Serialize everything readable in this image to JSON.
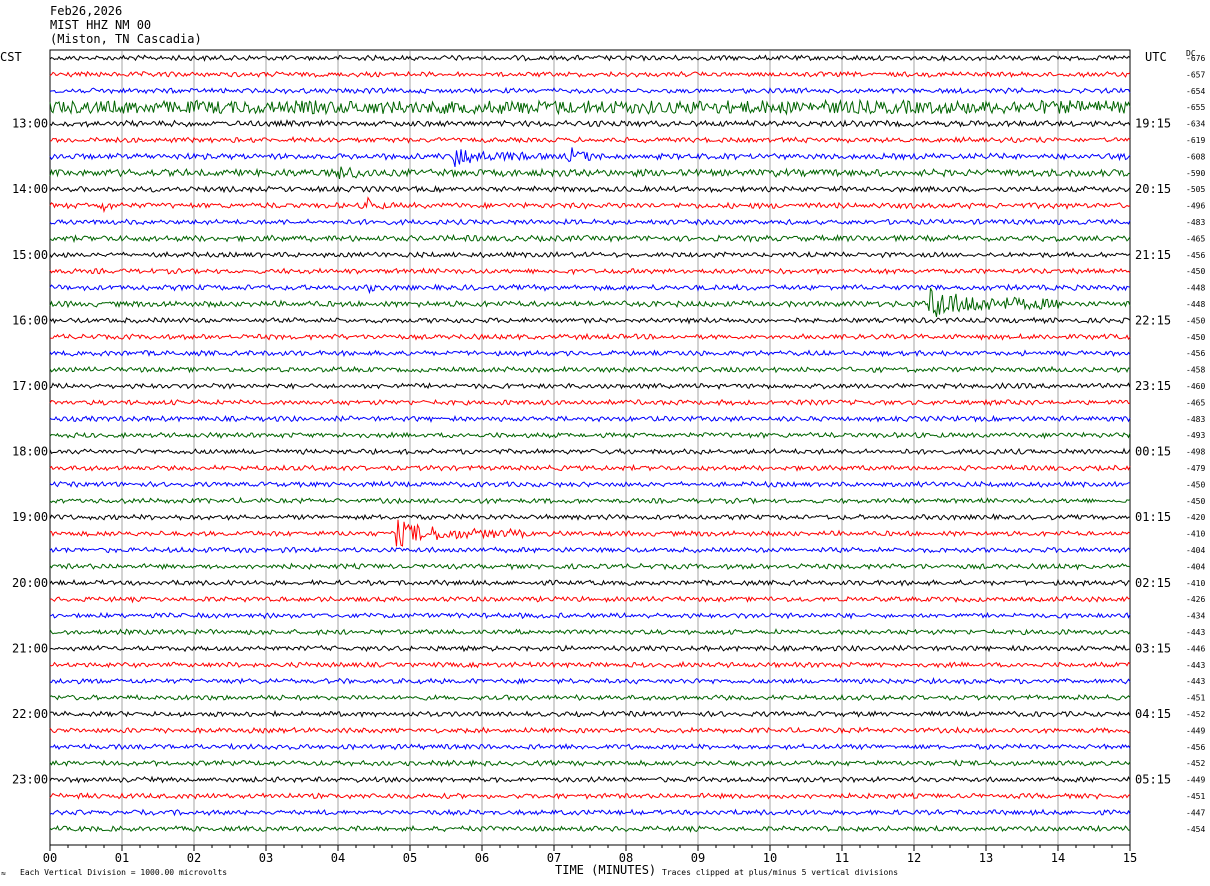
{
  "header": {
    "date": "Feb26,2026",
    "station": "MIST HHZ NM 00",
    "location": "(Miston, TN Cascadia)"
  },
  "left_zone_label": "CST",
  "right_zone_label": "UTC",
  "dc_header": "DC",
  "footer": {
    "mark": "≈",
    "scale_note": "Each Vertical Division = 1000.00 microvolts",
    "axis_title": "TIME (MINUTES)",
    "clip_note": "Traces clipped at plus/minus 5 vertical divisions"
  },
  "colors": {
    "black": "#000000",
    "red": "#ff0000",
    "blue": "#0000ff",
    "green": "#006400",
    "grid": "#808080"
  },
  "chart_data": {
    "type": "line",
    "title": "",
    "xlabel": "TIME (MINUTES)",
    "xlim": [
      0,
      15
    ],
    "x_ticks": [
      "00",
      "01",
      "02",
      "03",
      "04",
      "05",
      "06",
      "07",
      "08",
      "09",
      "10",
      "11",
      "12",
      "13",
      "14",
      "15"
    ],
    "trace_count": 48,
    "trace_color_cycle": [
      "black",
      "red",
      "blue",
      "green"
    ],
    "left_hour_labels": [
      {
        "trace": 4,
        "label": "13:00"
      },
      {
        "trace": 8,
        "label": "14:00"
      },
      {
        "trace": 12,
        "label": "15:00"
      },
      {
        "trace": 16,
        "label": "16:00"
      },
      {
        "trace": 20,
        "label": "17:00"
      },
      {
        "trace": 24,
        "label": "18:00"
      },
      {
        "trace": 28,
        "label": "19:00"
      },
      {
        "trace": 32,
        "label": "20:00"
      },
      {
        "trace": 36,
        "label": "21:00"
      },
      {
        "trace": 40,
        "label": "22:00"
      },
      {
        "trace": 44,
        "label": "23:00"
      }
    ],
    "right_hour_labels": [
      {
        "trace": 4,
        "label": "19:15"
      },
      {
        "trace": 8,
        "label": "20:15"
      },
      {
        "trace": 12,
        "label": "21:15"
      },
      {
        "trace": 16,
        "label": "22:15"
      },
      {
        "trace": 20,
        "label": "23:15"
      },
      {
        "trace": 24,
        "label": "00:15"
      },
      {
        "trace": 28,
        "label": "01:15"
      },
      {
        "trace": 32,
        "label": "02:15"
      },
      {
        "trace": 36,
        "label": "03:15"
      },
      {
        "trace": 40,
        "label": "04:15"
      },
      {
        "trace": 44,
        "label": "05:15"
      }
    ],
    "dc_offsets": [
      "-676",
      "-657",
      "-654",
      "-655",
      "-634",
      "-619",
      "-608",
      "-590",
      "-505",
      "-496",
      "-483",
      "-465",
      "-456",
      "-450",
      "-448",
      "-448",
      "-450",
      "-450",
      "-456",
      "-458",
      "-460",
      "-465",
      "-483",
      "-493",
      "-498",
      "-479",
      "-450",
      "-450",
      "-420",
      "-410",
      "-404",
      "-404",
      "-410",
      "-426",
      "-434",
      "-443",
      "-446",
      "-443",
      "-443",
      "-451",
      "-452",
      "-449",
      "-456",
      "-452",
      "-449",
      "-451",
      "-447",
      "-454"
    ],
    "trace_amplitude": [
      1,
      1,
      1,
      3,
      1.2,
      1,
      1.2,
      1.5,
      1.1,
      1.1,
      1,
      1.2,
      1,
      1,
      1.1,
      1.2,
      1,
      1,
      1,
      1,
      1,
      1,
      1,
      1,
      1,
      1,
      1,
      1,
      1,
      1,
      1,
      1,
      1,
      1,
      1,
      1,
      1,
      1,
      1,
      1,
      1,
      1,
      1,
      1,
      1,
      1,
      1,
      1
    ],
    "events": [
      {
        "trace": 3,
        "start_min": 7.0,
        "end_min": 14.5,
        "amplitude": 3
      },
      {
        "trace": 6,
        "start_min": 5.6,
        "end_min": 6.9,
        "amplitude": 5
      },
      {
        "trace": 6,
        "start_min": 7.2,
        "end_min": 7.8,
        "amplitude": 5
      },
      {
        "trace": 7,
        "start_min": 4.0,
        "end_min": 4.5,
        "amplitude": 6
      },
      {
        "trace": 7,
        "start_min": 10.0,
        "end_min": 10.3,
        "amplitude": 3
      },
      {
        "trace": 9,
        "start_min": 0.7,
        "end_min": 1.0,
        "amplitude": 4
      },
      {
        "trace": 9,
        "start_min": 4.4,
        "end_min": 4.8,
        "amplitude": 4
      },
      {
        "trace": 14,
        "start_min": 4.4,
        "end_min": 4.8,
        "amplitude": 3
      },
      {
        "trace": 15,
        "start_min": 12.2,
        "end_min": 14.0,
        "amplitude": 8
      },
      {
        "trace": 29,
        "start_min": 4.8,
        "end_min": 6.6,
        "amplitude": 6
      }
    ]
  }
}
